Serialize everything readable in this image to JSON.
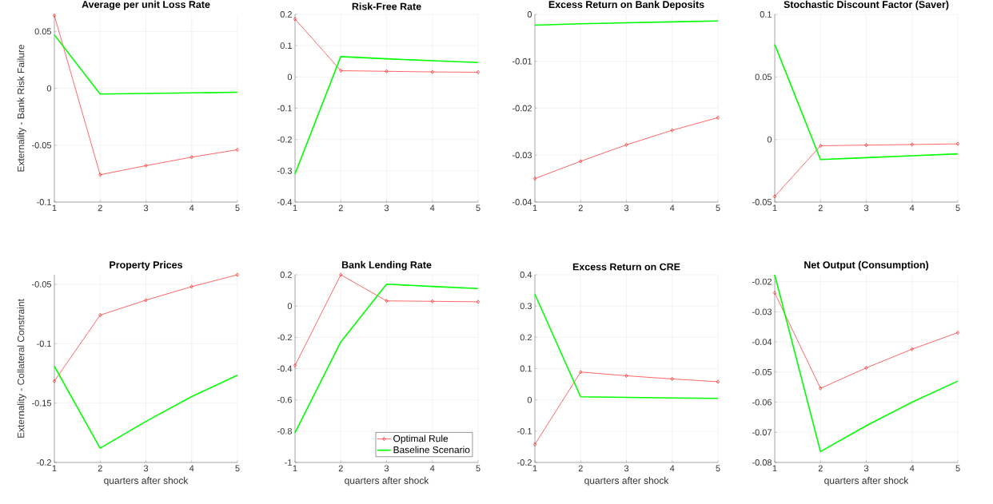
{
  "chart_data": [
    {
      "type": "line",
      "title": "Average per unit Loss Rate",
      "ylabel": "Externality - Bank Risk Failure",
      "x": [
        1,
        2,
        3,
        4,
        5
      ],
      "xlim": [
        1,
        5
      ],
      "xticks": [
        1,
        2,
        3,
        4,
        5
      ],
      "ylim": [
        -0.1,
        0.065
      ],
      "yticks": [
        -0.1,
        -0.05,
        0,
        0.05
      ],
      "grid": true,
      "line_style": "solid",
      "series": [
        {
          "color": "#ff0000",
          "marker": "diamond",
          "values": [
            0.064,
            -0.076,
            -0.068,
            -0.0605,
            -0.054
          ]
        },
        {
          "color": "#00ff00",
          "marker": "none",
          "values": [
            0.047,
            -0.005,
            -0.0045,
            -0.004,
            -0.0035
          ]
        }
      ]
    },
    {
      "type": "line",
      "title": "Risk-Free Rate",
      "x": [
        1,
        2,
        3,
        4,
        5
      ],
      "xlim": [
        1,
        5
      ],
      "xticks": [
        1,
        2,
        3,
        4,
        5
      ],
      "ylim": [
        -0.4,
        0.2
      ],
      "yticks": [
        -0.4,
        -0.3,
        -0.2,
        -0.1,
        0,
        0.1,
        0.2
      ],
      "grid": true,
      "line_style": "solid",
      "series": [
        {
          "color": "#ff0000",
          "marker": "diamond",
          "values": [
            0.185,
            0.02,
            0.018,
            0.016,
            0.015
          ]
        },
        {
          "color": "#00ff00",
          "marker": "none",
          "values": [
            -0.31,
            0.065,
            0.058,
            0.052,
            0.046
          ]
        }
      ]
    },
    {
      "type": "line",
      "title": "Excess Return on Bank Deposits",
      "x": [
        1,
        2,
        3,
        4,
        5
      ],
      "xlim": [
        1,
        5
      ],
      "xticks": [
        1,
        2,
        3,
        4,
        5
      ],
      "ylim": [
        -0.04,
        0
      ],
      "yticks": [
        -0.04,
        -0.03,
        -0.02,
        -0.01,
        0
      ],
      "grid": true,
      "line_style": "solid",
      "series": [
        {
          "color": "#ff0000",
          "marker": "diamond",
          "values": [
            -0.035,
            -0.0313,
            -0.0278,
            -0.0247,
            -0.022
          ]
        },
        {
          "color": "#00ff00",
          "marker": "none",
          "values": [
            -0.0023,
            -0.002,
            -0.0018,
            -0.0016,
            -0.0014
          ]
        }
      ]
    },
    {
      "type": "line",
      "title": "Stochastic Discount Factor (Saver)",
      "x": [
        1,
        2,
        3,
        4,
        5
      ],
      "xlim": [
        1,
        5
      ],
      "xticks": [
        1,
        2,
        3,
        4,
        5
      ],
      "ylim": [
        -0.05,
        0.1
      ],
      "yticks": [
        -0.05,
        0,
        0.05,
        0.1
      ],
      "grid": true,
      "line_style": "solid",
      "series": [
        {
          "color": "#ff0000",
          "marker": "diamond",
          "values": [
            -0.0455,
            -0.005,
            -0.0045,
            -0.004,
            -0.0035
          ]
        },
        {
          "color": "#00ff00",
          "marker": "none",
          "values": [
            0.076,
            -0.016,
            -0.0145,
            -0.013,
            -0.0115
          ]
        }
      ]
    },
    {
      "type": "line",
      "title": "Property Prices",
      "xlabel": "quarters after shock",
      "ylabel": "Externality - Collateral Constraint",
      "x": [
        1,
        2,
        3,
        4,
        5
      ],
      "xlim": [
        1,
        5
      ],
      "xticks": [
        1,
        2,
        3,
        4,
        5
      ],
      "ylim": [
        -0.2,
        -0.042
      ],
      "yticks": [
        -0.2,
        -0.15,
        -0.1,
        -0.05
      ],
      "grid": true,
      "line_style": "solid",
      "series": [
        {
          "color": "#ff0000",
          "marker": "diamond",
          "values": [
            -0.1315,
            -0.076,
            -0.0634,
            -0.052,
            -0.042
          ]
        },
        {
          "color": "#00ff00",
          "marker": "none",
          "values": [
            -0.119,
            -0.188,
            -0.1655,
            -0.1445,
            -0.1265
          ]
        }
      ]
    },
    {
      "type": "line",
      "title": "Bank Lending Rate",
      "xlabel": "quarters after shock",
      "x": [
        1,
        2,
        3,
        4,
        5
      ],
      "xlim": [
        1,
        5
      ],
      "xticks": [
        1,
        2,
        3,
        4,
        5
      ],
      "ylim": [
        -1,
        0.2
      ],
      "yticks": [
        -1,
        -0.8,
        -0.6,
        -0.4,
        -0.2,
        0,
        0.2
      ],
      "grid": true,
      "line_style": "solid",
      "legend": "bottom right",
      "series": [
        {
          "name": "Optimal Rule",
          "color": "#ff0000",
          "marker": "diamond",
          "values": [
            -0.38,
            0.2,
            0.033,
            0.03,
            0.027
          ]
        },
        {
          "name": "Baseline Scenario",
          "color": "#00ff00",
          "marker": "none",
          "values": [
            -0.81,
            -0.23,
            0.14,
            0.125,
            0.112
          ]
        }
      ]
    },
    {
      "type": "line",
      "title": "Excess Return on CRE",
      "xlabel": "quarters after shock",
      "x": [
        1,
        2,
        3,
        4,
        5
      ],
      "xlim": [
        1,
        5
      ],
      "xticks": [
        1,
        2,
        3,
        4,
        5
      ],
      "ylim": [
        -0.2,
        0.4
      ],
      "yticks": [
        -0.2,
        -0.1,
        0,
        0.1,
        0.2,
        0.3,
        0.4
      ],
      "grid": true,
      "line_style": "solid",
      "series": [
        {
          "color": "#ff0000",
          "marker": "diamond",
          "values": [
            -0.142,
            0.089,
            0.077,
            0.067,
            0.058
          ]
        },
        {
          "color": "#00ff00",
          "marker": "none",
          "values": [
            0.338,
            0.01,
            0.008,
            0.006,
            0.005
          ]
        }
      ]
    },
    {
      "type": "line",
      "title": "Net Output (Consumption)",
      "xlabel": "quarters after shock",
      "x": [
        1,
        2,
        3,
        4,
        5
      ],
      "xlim": [
        1,
        5
      ],
      "xticks": [
        1,
        2,
        3,
        4,
        5
      ],
      "ylim": [
        -0.08,
        -0.0177
      ],
      "yticks": [
        -0.08,
        -0.07,
        -0.06,
        -0.05,
        -0.04,
        -0.03,
        -0.02
      ],
      "grid": true,
      "line_style": "solid",
      "series": [
        {
          "color": "#ff0000",
          "marker": "diamond",
          "values": [
            -0.0237,
            -0.0554,
            -0.0486,
            -0.0424,
            -0.0369
          ]
        },
        {
          "color": "#00ff00",
          "marker": "none",
          "values": [
            -0.0177,
            -0.0764,
            -0.0678,
            -0.06,
            -0.053
          ]
        }
      ]
    }
  ]
}
